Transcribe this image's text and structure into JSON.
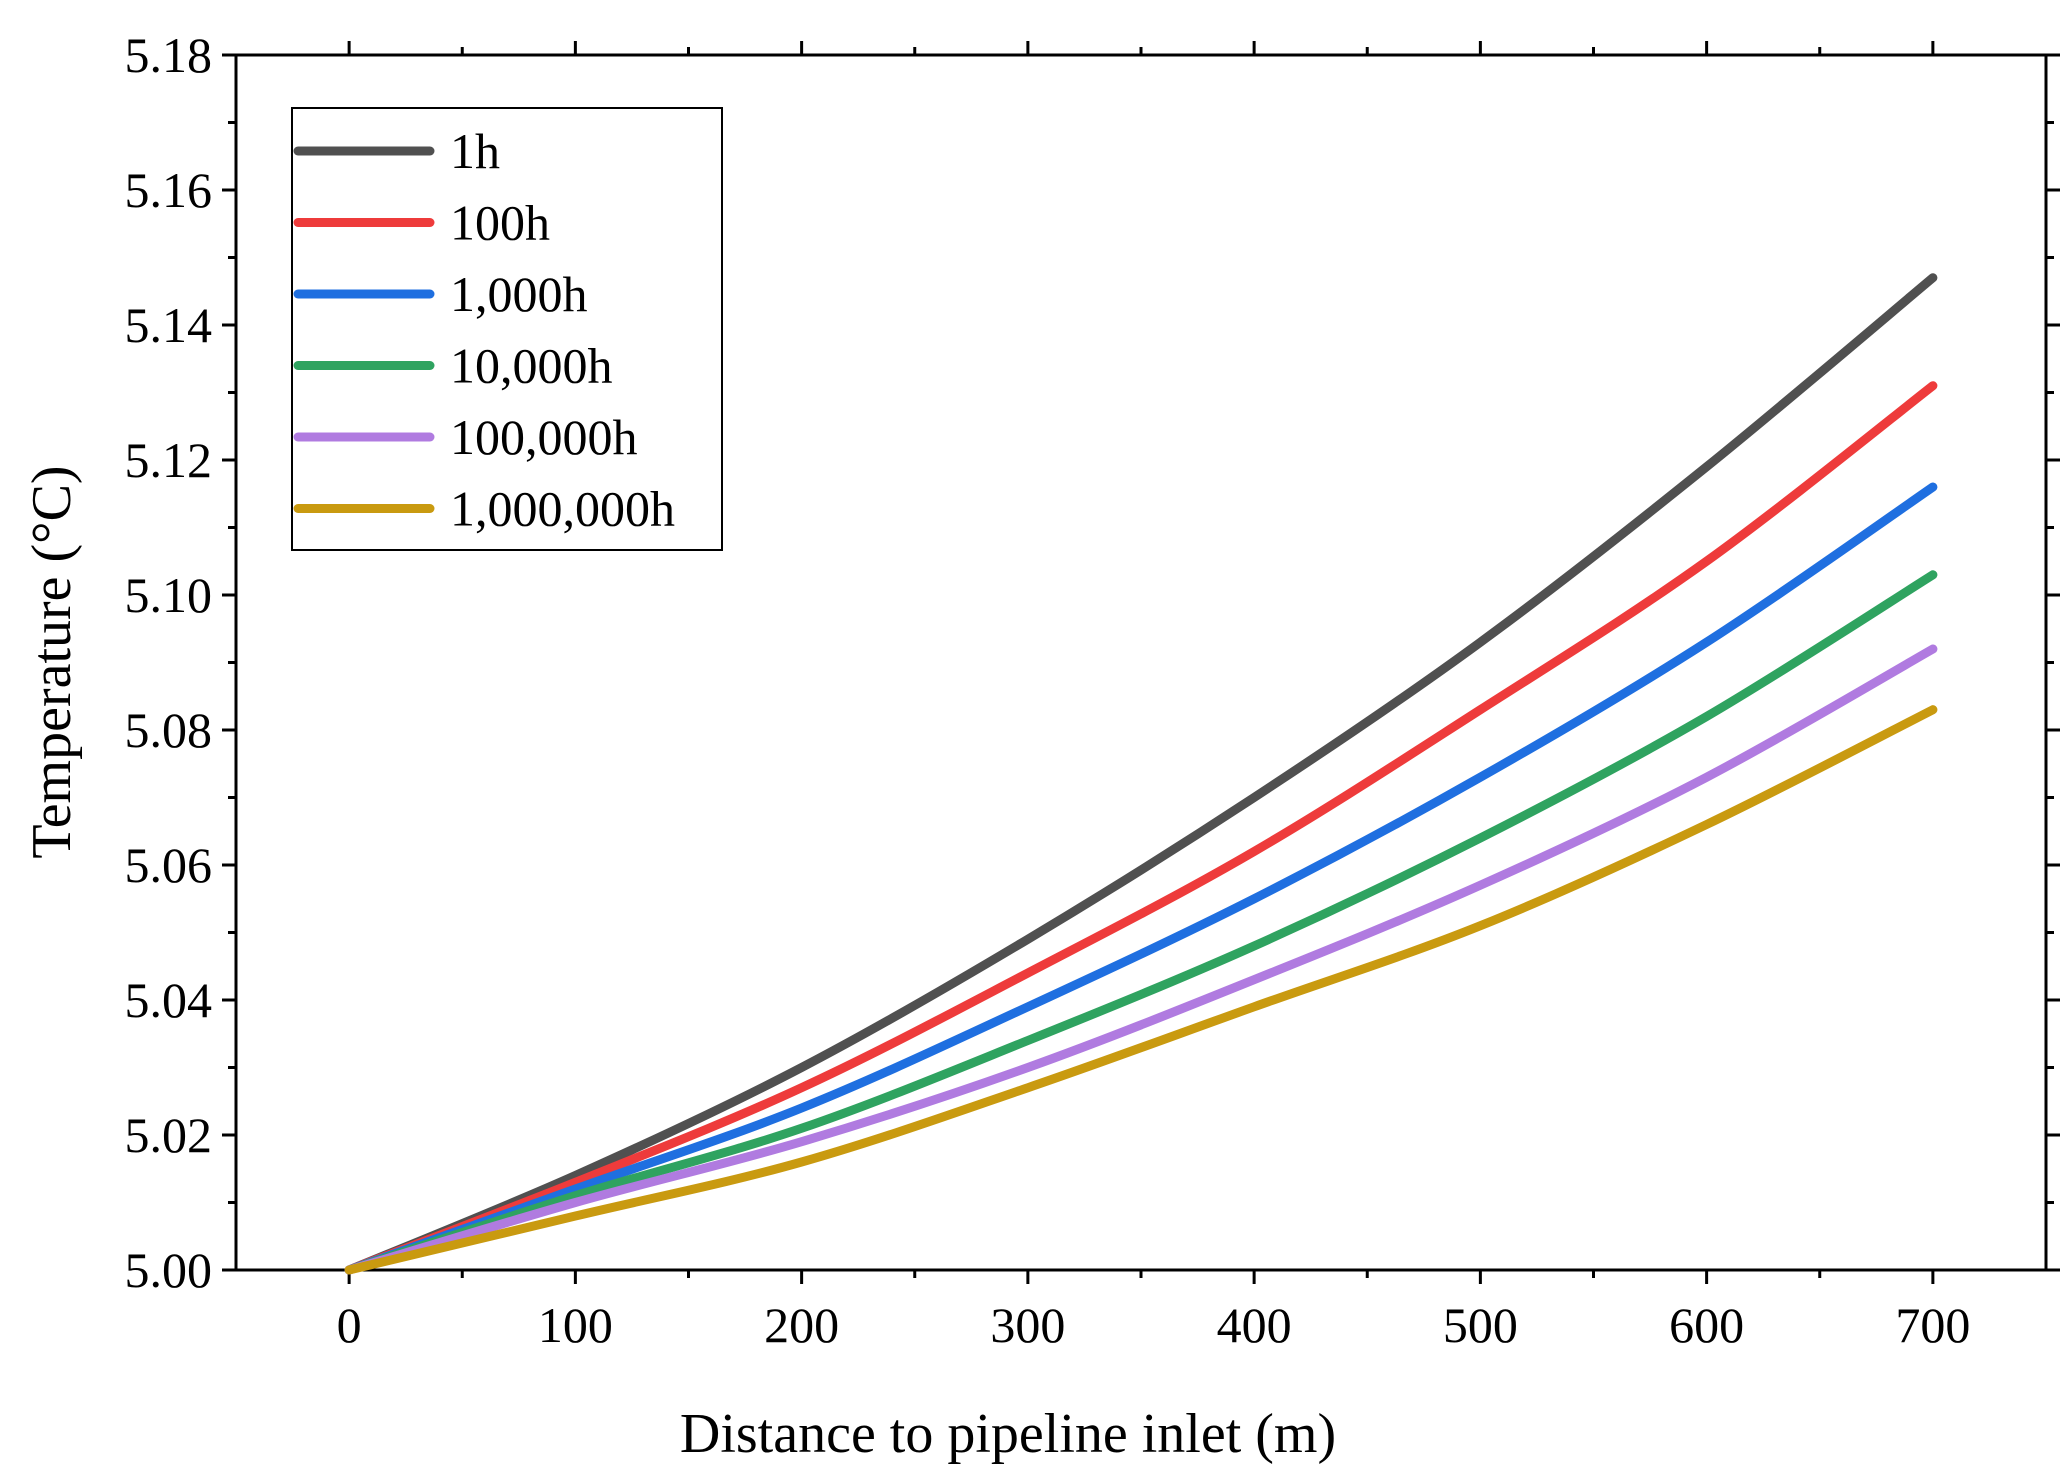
{
  "chart_data": {
    "type": "line",
    "title": "",
    "xlabel": "Distance to pipeline inlet (m)",
    "ylabel": "Temperature (°C)",
    "xlim": [
      -50,
      750
    ],
    "ylim": [
      5.0,
      5.18
    ],
    "xticks": [
      0,
      100,
      200,
      300,
      400,
      500,
      600,
      700
    ],
    "xtick_labels": [
      "0",
      "100",
      "200",
      "300",
      "400",
      "500",
      "600",
      "700"
    ],
    "yticks": [
      5.0,
      5.02,
      5.04,
      5.06,
      5.08,
      5.1,
      5.12,
      5.14,
      5.16,
      5.18
    ],
    "ytick_labels": [
      "5.00",
      "5.02",
      "5.04",
      "5.06",
      "5.08",
      "5.10",
      "5.12",
      "5.14",
      "5.16",
      "5.18"
    ],
    "grid": false,
    "legend_position": "top-left",
    "x": [
      0,
      100,
      200,
      300,
      400,
      500,
      600,
      700
    ],
    "series": [
      {
        "name": "1h",
        "color": "#505050",
        "values": [
          5.0,
          5.014,
          5.03,
          5.049,
          5.07,
          5.093,
          5.119,
          5.147
        ]
      },
      {
        "name": "100h",
        "color": "#ee3b3b",
        "values": [
          5.0,
          5.013,
          5.027,
          5.044,
          5.062,
          5.083,
          5.105,
          5.131
        ]
      },
      {
        "name": "1,000h",
        "color": "#1f6fe0",
        "values": [
          5.0,
          5.012,
          5.024,
          5.039,
          5.055,
          5.073,
          5.093,
          5.116
        ]
      },
      {
        "name": "10,000h",
        "color": "#2fa360",
        "values": [
          5.0,
          5.011,
          5.021,
          5.034,
          5.048,
          5.064,
          5.082,
          5.103
        ]
      },
      {
        "name": "100,000h",
        "color": "#b07be0",
        "values": [
          5.0,
          5.01,
          5.019,
          5.03,
          5.043,
          5.057,
          5.073,
          5.092
        ]
      },
      {
        "name": "1,000,000h",
        "color": "#c99a10",
        "values": [
          5.0,
          5.008,
          5.016,
          5.027,
          5.039,
          5.051,
          5.066,
          5.083
        ]
      }
    ]
  }
}
